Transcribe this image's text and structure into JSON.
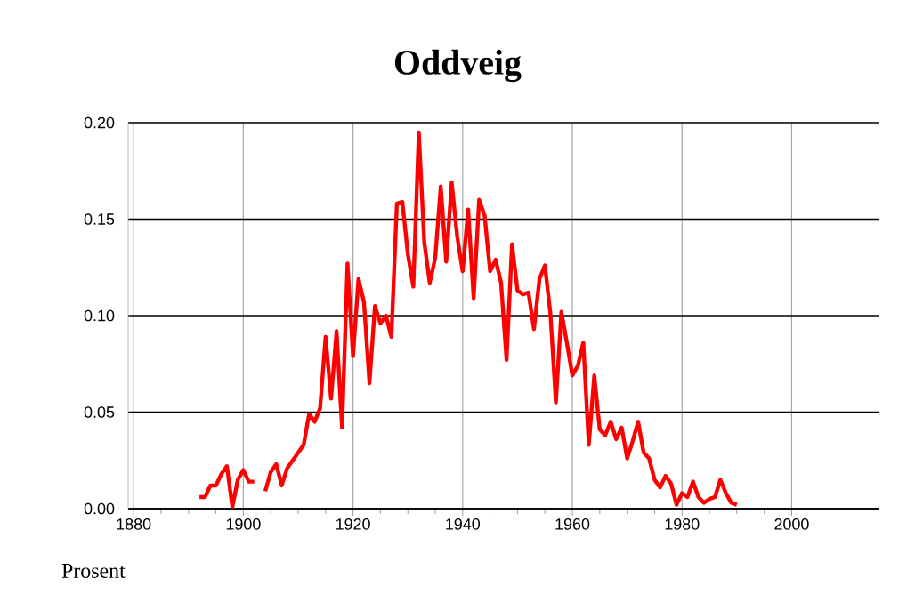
{
  "chart_data": {
    "type": "line",
    "title": "Oddveig",
    "ylabel": "Prosent",
    "x": [
      1892,
      1893,
      1894,
      1895,
      1896,
      1897,
      1898,
      1899,
      1900,
      1901,
      1902,
      1903,
      1904,
      1905,
      1906,
      1907,
      1908,
      1909,
      1910,
      1911,
      1912,
      1913,
      1914,
      1915,
      1916,
      1917,
      1918,
      1919,
      1920,
      1921,
      1922,
      1923,
      1924,
      1925,
      1926,
      1927,
      1928,
      1929,
      1930,
      1931,
      1932,
      1933,
      1934,
      1935,
      1936,
      1937,
      1938,
      1939,
      1940,
      1941,
      1942,
      1943,
      1944,
      1945,
      1946,
      1947,
      1948,
      1949,
      1950,
      1951,
      1952,
      1953,
      1954,
      1955,
      1956,
      1957,
      1958,
      1959,
      1960,
      1961,
      1962,
      1963,
      1964,
      1965,
      1966,
      1967,
      1968,
      1969,
      1970,
      1971,
      1972,
      1973,
      1974,
      1975,
      1976,
      1977,
      1978,
      1979,
      1980,
      1981,
      1982,
      1983,
      1984,
      1985,
      1986,
      1987,
      1988,
      1989,
      1990
    ],
    "series": [
      {
        "color": "#ff0000",
        "values": [
          0.006,
          0.006,
          0.012,
          0.012,
          0.018,
          0.022,
          0.001,
          0.015,
          0.02,
          0.014,
          0.014,
          null,
          0.009,
          0.019,
          0.023,
          0.012,
          0.021,
          0.025,
          0.029,
          0.033,
          0.049,
          0.045,
          0.052,
          0.089,
          0.057,
          0.092,
          0.042,
          0.127,
          0.079,
          0.119,
          0.107,
          0.065,
          0.105,
          0.096,
          0.1,
          0.089,
          0.158,
          0.159,
          0.132,
          0.115,
          0.195,
          0.138,
          0.117,
          0.13,
          0.167,
          0.128,
          0.169,
          0.141,
          0.123,
          0.155,
          0.109,
          0.16,
          0.152,
          0.123,
          0.129,
          0.117,
          0.077,
          0.137,
          0.113,
          0.111,
          0.112,
          0.093,
          0.119,
          0.126,
          0.101,
          0.055,
          0.102,
          0.086,
          0.069,
          0.074,
          0.086,
          0.033,
          0.069,
          0.041,
          0.038,
          0.045,
          0.036,
          0.042,
          0.026,
          0.035,
          0.045,
          0.029,
          0.026,
          0.015,
          0.011,
          0.017,
          0.013,
          0.002,
          0.008,
          0.006,
          0.014,
          0.006,
          0.003,
          0.005,
          0.006,
          0.015,
          0.008,
          0.003,
          0.002
        ]
      }
    ],
    "xlim": [
      1879,
      2016
    ],
    "ylim": [
      0,
      0.2
    ],
    "xticks": [
      1880,
      1900,
      1920,
      1940,
      1960,
      1980,
      2000
    ],
    "yticks": [
      {
        "value": 0,
        "label": "0.00"
      },
      {
        "value": 0.05,
        "label": "0.05"
      },
      {
        "value": 0.1,
        "label": "0.10"
      },
      {
        "value": 0.15,
        "label": "0.15"
      },
      {
        "value": 0.2,
        "label": "0.20"
      }
    ],
    "grid": true,
    "marker": "none",
    "line_style": "solid"
  }
}
